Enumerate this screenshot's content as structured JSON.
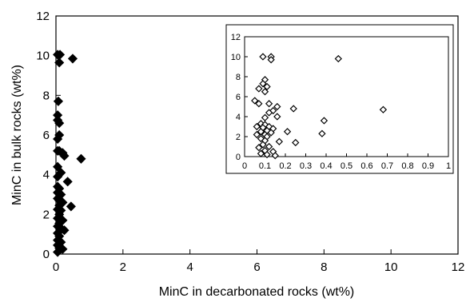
{
  "chart_data": [
    {
      "type": "scatter",
      "title": "",
      "xlabel": "MinC in decarbonated rocks (wt%)",
      "ylabel": "MinC in bulk rocks (wt%)",
      "xlim": [
        0,
        12
      ],
      "ylim": [
        0,
        12
      ],
      "xticks": [
        "0",
        "2",
        "4",
        "6",
        "8",
        "10",
        "12"
      ],
      "yticks": [
        "0",
        "2",
        "4",
        "6",
        "8",
        "10",
        "12"
      ],
      "grid": false,
      "marker": "filled-diamond",
      "color": "#000000",
      "series": [
        {
          "points": [
            [
              0.05,
              10.05
            ],
            [
              0.12,
              10.05
            ],
            [
              0.1,
              9.65
            ],
            [
              0.5,
              9.85
            ],
            [
              0.07,
              7.7
            ],
            [
              0.05,
              7.0
            ],
            [
              0.05,
              6.75
            ],
            [
              0.1,
              6.6
            ],
            [
              0.1,
              6.0
            ],
            [
              0.05,
              5.8
            ],
            [
              0.05,
              5.2
            ],
            [
              0.1,
              5.2
            ],
            [
              0.2,
              5.1
            ],
            [
              0.25,
              4.95
            ],
            [
              0.75,
              4.8
            ],
            [
              0.05,
              4.4
            ],
            [
              0.15,
              4.1
            ],
            [
              0.05,
              3.9
            ],
            [
              0.35,
              3.65
            ],
            [
              0.05,
              3.4
            ],
            [
              0.1,
              3.3
            ],
            [
              0.05,
              3.1
            ],
            [
              0.15,
              3.0
            ],
            [
              0.05,
              2.8
            ],
            [
              0.1,
              2.7
            ],
            [
              0.2,
              2.6
            ],
            [
              0.1,
              2.45
            ],
            [
              0.45,
              2.4
            ],
            [
              0.05,
              2.25
            ],
            [
              0.15,
              2.2
            ],
            [
              0.1,
              2.0
            ],
            [
              0.05,
              1.8
            ],
            [
              0.2,
              1.7
            ],
            [
              0.1,
              1.55
            ],
            [
              0.05,
              1.4
            ],
            [
              0.15,
              1.3
            ],
            [
              0.25,
              1.2
            ],
            [
              0.05,
              1.05
            ],
            [
              0.1,
              0.9
            ],
            [
              0.05,
              0.7
            ],
            [
              0.15,
              0.6
            ],
            [
              0.05,
              0.45
            ],
            [
              0.1,
              0.3
            ],
            [
              0.2,
              0.25
            ],
            [
              0.05,
              0.1
            ]
          ]
        }
      ]
    },
    {
      "type": "scatter",
      "title": "",
      "xlabel": "",
      "ylabel": "",
      "xlim": [
        0,
        1
      ],
      "ylim": [
        0,
        12
      ],
      "xticks": [
        "0",
        "0.1",
        "0.2",
        "0.3",
        "0.4",
        "0.5",
        "0.6",
        "0.7",
        "0.8",
        "0.9",
        "1"
      ],
      "yticks": [
        "0",
        "2",
        "4",
        "6",
        "8",
        "10",
        "12"
      ],
      "grid": false,
      "marker": "open-diamond",
      "color": "#000000",
      "series": [
        {
          "points": [
            [
              0.09,
              10.0
            ],
            [
              0.13,
              10.0
            ],
            [
              0.13,
              9.7
            ],
            [
              0.46,
              9.8
            ],
            [
              0.1,
              7.7
            ],
            [
              0.09,
              7.3
            ],
            [
              0.11,
              7.0
            ],
            [
              0.07,
              6.8
            ],
            [
              0.1,
              6.5
            ],
            [
              0.05,
              5.6
            ],
            [
              0.07,
              5.3
            ],
            [
              0.12,
              5.3
            ],
            [
              0.16,
              5.0
            ],
            [
              0.14,
              4.6
            ],
            [
              0.24,
              4.8
            ],
            [
              0.68,
              4.7
            ],
            [
              0.12,
              4.4
            ],
            [
              0.16,
              4.0
            ],
            [
              0.1,
              3.9
            ],
            [
              0.39,
              3.6
            ],
            [
              0.08,
              3.3
            ],
            [
              0.1,
              3.2
            ],
            [
              0.06,
              3.0
            ],
            [
              0.12,
              3.0
            ],
            [
              0.09,
              2.9
            ],
            [
              0.14,
              2.8
            ],
            [
              0.11,
              2.6
            ],
            [
              0.08,
              2.5
            ],
            [
              0.21,
              2.5
            ],
            [
              0.13,
              2.4
            ],
            [
              0.06,
              2.2
            ],
            [
              0.1,
              2.2
            ],
            [
              0.38,
              2.3
            ],
            [
              0.11,
              2.0
            ],
            [
              0.08,
              1.8
            ],
            [
              0.1,
              1.6
            ],
            [
              0.17,
              1.5
            ],
            [
              0.25,
              1.4
            ],
            [
              0.09,
              1.2
            ],
            [
              0.12,
              1.0
            ],
            [
              0.07,
              0.9
            ],
            [
              0.1,
              0.6
            ],
            [
              0.14,
              0.5
            ],
            [
              0.08,
              0.3
            ],
            [
              0.11,
              0.2
            ],
            [
              0.15,
              0.1
            ]
          ]
        }
      ]
    }
  ]
}
